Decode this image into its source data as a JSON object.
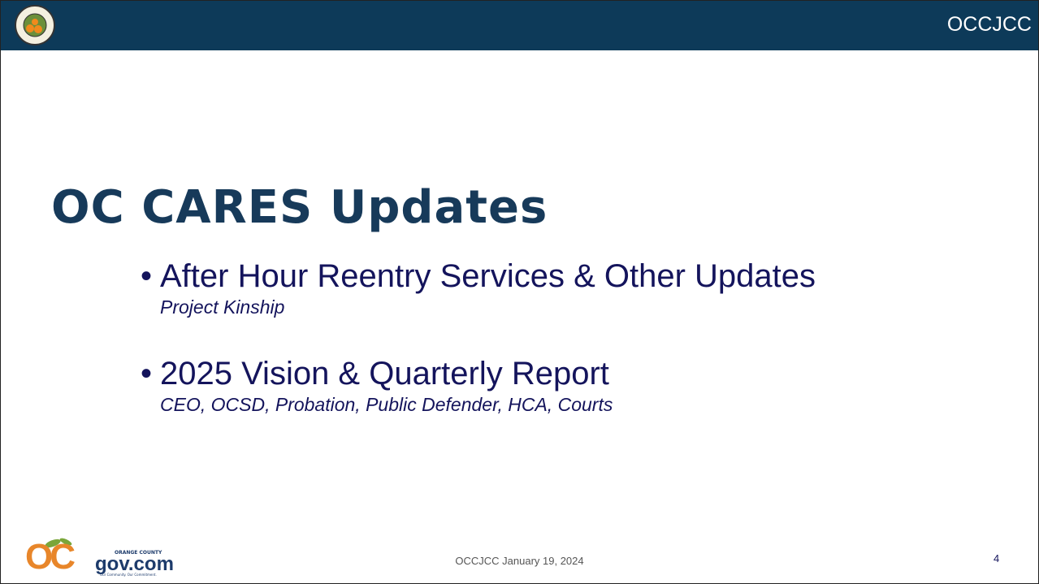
{
  "header": {
    "brand": "OCCJCC"
  },
  "slide": {
    "title": "OC CARES Updates",
    "bullets": [
      {
        "text": "After Hour Reentry Services & Other Updates",
        "subtext": "Project Kinship"
      },
      {
        "text": "2025 Vision & Quarterly Report",
        "subtext": "CEO, OCSD, Probation, Public Defender, HCA, Courts"
      }
    ]
  },
  "footer": {
    "logo": {
      "mark": "OC",
      "county": "ORANGE COUNTY",
      "name": "gov.com",
      "tagline": "Our Community. Our Commitment."
    },
    "date": "OCCJCC January 19, 2024",
    "page_number": 4
  }
}
